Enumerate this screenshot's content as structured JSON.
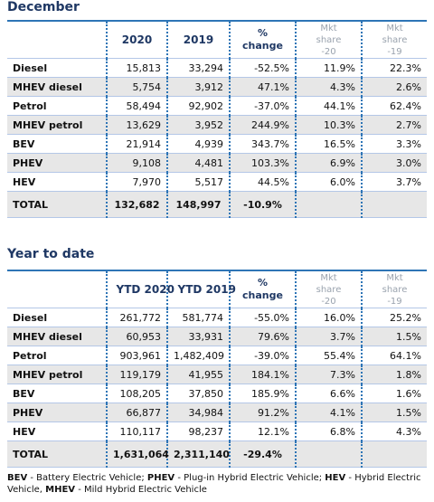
{
  "sections": [
    {
      "title": "December",
      "headers": [
        "",
        "2020",
        "2019",
        "% change",
        "Mkt share -20",
        "Mkt share -19"
      ],
      "rows": [
        [
          "Diesel",
          "15,813",
          "33,294",
          "-52.5%",
          "11.9%",
          "22.3%"
        ],
        [
          "MHEV diesel",
          "5,754",
          "3,912",
          "47.1%",
          "4.3%",
          "2.6%"
        ],
        [
          "Petrol",
          "58,494",
          "92,902",
          "-37.0%",
          "44.1%",
          "62.4%"
        ],
        [
          "MHEV petrol",
          "13,629",
          "3,952",
          "244.9%",
          "10.3%",
          "2.7%"
        ],
        [
          "BEV",
          "21,914",
          "4,939",
          "343.7%",
          "16.5%",
          "3.3%"
        ],
        [
          "PHEV",
          "9,108",
          "4,481",
          "103.3%",
          "6.9%",
          "3.0%"
        ],
        [
          "HEV",
          "7,970",
          "5,517",
          "44.5%",
          "6.0%",
          "3.7%"
        ],
        [
          "TOTAL",
          "132,682",
          "148,997",
          "-10.9%",
          "",
          ""
        ]
      ]
    },
    {
      "title": "Year to date",
      "headers": [
        "",
        "YTD 2020",
        "YTD 2019",
        "% change",
        "Mkt share -20",
        "Mkt share -19"
      ],
      "rows": [
        [
          "Diesel",
          "261,772",
          "581,774",
          "-55.0%",
          "16.0%",
          "25.2%"
        ],
        [
          "MHEV diesel",
          "60,953",
          "33,931",
          "79.6%",
          "3.7%",
          "1.5%"
        ],
        [
          "Petrol",
          "903,961",
          "1,482,409",
          "-39.0%",
          "55.4%",
          "64.1%"
        ],
        [
          "MHEV petrol",
          "119,179",
          "41,955",
          "184.1%",
          "7.3%",
          "1.8%"
        ],
        [
          "BEV",
          "108,205",
          "37,850",
          "185.9%",
          "6.6%",
          "1.6%"
        ],
        [
          "PHEV",
          "66,877",
          "34,984",
          "91.2%",
          "4.1%",
          "1.5%"
        ],
        [
          "HEV",
          "110,117",
          "98,237",
          "12.1%",
          "6.8%",
          "4.3%"
        ],
        [
          "TOTAL",
          "1,631,064",
          "2,311,140",
          "-29.4%",
          "",
          ""
        ]
      ]
    }
  ],
  "footnote": [
    {
      "abbr": "BEV",
      "desc": " - Battery Electric Vehicle; "
    },
    {
      "abbr": "PHEV",
      "desc": " - Plug-in Hybrid Electric Vehicle; "
    },
    {
      "abbr": "HEV",
      "desc": " - Hybrid Electric Vehicle, "
    },
    {
      "abbr": "MHEV",
      "desc": " - Mild Hybrid Electric Vehicle"
    }
  ]
}
